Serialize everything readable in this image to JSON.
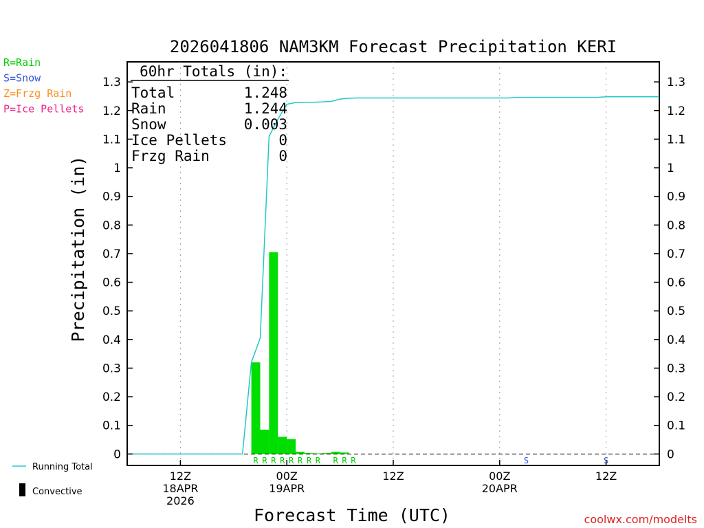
{
  "title": "2026041806 NAM3KM Forecast Precipitation KERI",
  "legend_ptype": [
    {
      "label": "R=Rain",
      "color": "#00cc00"
    },
    {
      "label": "S=Snow",
      "color": "#3355dd"
    },
    {
      "label": "Z=Frzg Rain",
      "color": "#ff8c1a"
    },
    {
      "label": "P=Ice Pellets",
      "color": "#ee2288"
    }
  ],
  "totals": {
    "header": "60hr Totals (in):",
    "rows": [
      {
        "label": "Total",
        "value": "1.248"
      },
      {
        "label": "Rain",
        "value": "1.244"
      },
      {
        "label": "Snow",
        "value": "0.003"
      },
      {
        "label": "Ice Pellets",
        "value": "0"
      },
      {
        "label": "Frzg Rain",
        "value": "0"
      }
    ]
  },
  "legend_bottom": {
    "running_total": "Running Total",
    "convective": "Convective"
  },
  "credit": "coolwx.com/modelts",
  "colors": {
    "bar": "#00dd00",
    "running_total": "#22c8c8",
    "rain_letter": "#00cc00",
    "snow_letter": "#3355dd",
    "grid": "#999999",
    "credit": "#dd2222"
  },
  "chart_data": {
    "type": "bar",
    "xlabel": "Forecast Time (UTC)",
    "ylabel": "Precipitation (in)",
    "xlim": [
      6,
      66
    ],
    "ylim": [
      -0.04,
      1.37
    ],
    "yticks": [
      0,
      0.1,
      0.2,
      0.3,
      0.4,
      0.5,
      0.6,
      0.7,
      0.8,
      0.9,
      1,
      1.1,
      1.2,
      1.3
    ],
    "ytick_labels": [
      "0",
      "0.1",
      "0.2",
      "0.3",
      "0.4",
      "0.5",
      "0.6",
      "0.7",
      "0.8",
      "0.9",
      "1",
      "1.1",
      "1.2",
      "1.3"
    ],
    "xticks": [
      {
        "x": 12,
        "lines": [
          "12Z",
          "18APR",
          "2026"
        ]
      },
      {
        "x": 24,
        "lines": [
          "00Z",
          "19APR"
        ]
      },
      {
        "x": 36,
        "lines": [
          "12Z"
        ]
      },
      {
        "x": 48,
        "lines": [
          "00Z",
          "20APR"
        ]
      },
      {
        "x": 60,
        "lines": [
          "12Z"
        ]
      }
    ],
    "grid": "vertical dotted",
    "hourly_precip": {
      "x": [
        20,
        21,
        22,
        23,
        24,
        25,
        26,
        27,
        28,
        29,
        30
      ],
      "values": [
        0.32,
        0.085,
        0.705,
        0.06,
        0.052,
        0.008,
        0.003,
        0.002,
        0.003,
        0.008,
        0.005
      ]
    },
    "running_total": {
      "x": [
        6,
        19,
        20,
        21,
        22,
        23,
        24,
        25,
        26,
        27,
        28,
        29,
        30,
        31,
        32,
        34,
        36,
        38,
        40,
        42,
        44,
        46,
        48,
        49,
        50,
        52,
        54,
        56,
        58,
        59,
        60,
        62,
        64,
        66
      ],
      "values": [
        0,
        0,
        0.32,
        0.405,
        1.11,
        1.17,
        1.222,
        1.228,
        1.229,
        1.229,
        1.23,
        1.232,
        1.24,
        1.243,
        1.244,
        1.244,
        1.244,
        1.244,
        1.244,
        1.244,
        1.244,
        1.244,
        1.244,
        1.244,
        1.246,
        1.246,
        1.246,
        1.246,
        1.246,
        1.246,
        1.248,
        1.248,
        1.248,
        1.248
      ]
    },
    "ptype_markers": [
      {
        "x": 20.5,
        "type": "R"
      },
      {
        "x": 21.5,
        "type": "R"
      },
      {
        "x": 22.5,
        "type": "R"
      },
      {
        "x": 23.5,
        "type": "R"
      },
      {
        "x": 24.5,
        "type": "R"
      },
      {
        "x": 25.5,
        "type": "R"
      },
      {
        "x": 26.5,
        "type": "R"
      },
      {
        "x": 27.5,
        "type": "R"
      },
      {
        "x": 29.5,
        "type": "R"
      },
      {
        "x": 30.5,
        "type": "R"
      },
      {
        "x": 31.5,
        "type": "R"
      },
      {
        "x": 51,
        "type": "S"
      },
      {
        "x": 60,
        "type": "S"
      }
    ]
  }
}
